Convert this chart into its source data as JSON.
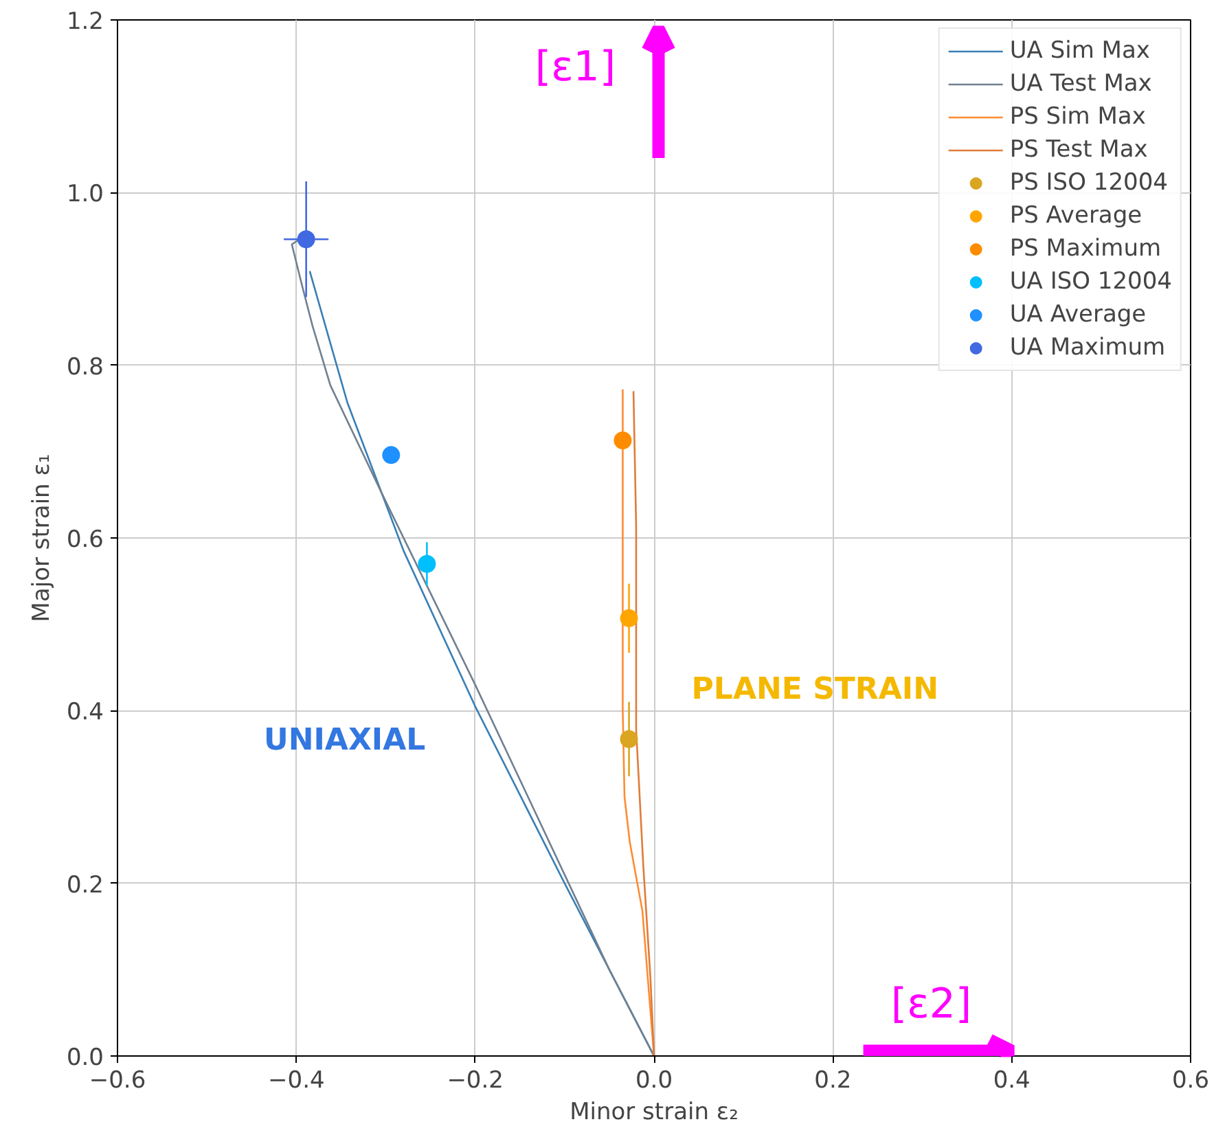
{
  "chart_data": {
    "type": "scatter",
    "xlabel": "Minor strain ε₂",
    "ylabel": "Major strain ε₁",
    "xlim": [
      -0.6,
      0.6
    ],
    "ylim": [
      0,
      1.2
    ],
    "xticks": [
      {
        "value": -0.6,
        "label": "−0.6"
      },
      {
        "value": -0.4,
        "label": "−0.4"
      },
      {
        "value": -0.2,
        "label": "−0.2"
      },
      {
        "value": 0,
        "label": "0.0"
      },
      {
        "value": 0.2,
        "label": "0.2"
      },
      {
        "value": 0.4,
        "label": "0.4"
      },
      {
        "value": 0.6,
        "label": "0.6"
      }
    ],
    "yticks": [
      {
        "value": 0,
        "label": "0.0"
      },
      {
        "value": 0.2,
        "label": "0.2"
      },
      {
        "value": 0.4,
        "label": "0.4"
      },
      {
        "value": 0.6,
        "label": "0.6"
      },
      {
        "value": 0.8,
        "label": "0.8"
      },
      {
        "value": 1.0,
        "label": "1.0"
      },
      {
        "value": 1.2,
        "label": "1.2"
      }
    ],
    "grid": true,
    "legend": "top right",
    "marker": "circle",
    "annotations": [
      "[ε1]",
      "[ε2]",
      "UNIAXIAL",
      "PLANE STRAIN"
    ],
    "series": [
      {
        "name": "UA Sim Max",
        "type": "line",
        "marker": "none",
        "color": "#3a7fb5",
        "x": [
          0,
          -0.1,
          -0.2,
          -0.28,
          -0.343,
          -0.385
        ],
        "values": [
          0,
          0.2,
          0.405,
          0.585,
          0.757,
          0.909
        ]
      },
      {
        "name": "UA Test Max",
        "type": "line",
        "marker": "none",
        "color": "#708090",
        "x": [
          0,
          -0.05,
          -0.1,
          -0.2,
          -0.305,
          -0.362,
          -0.382,
          -0.394,
          -0.405,
          -0.398
        ],
        "values": [
          0,
          0.1,
          0.21,
          0.43,
          0.653,
          0.777,
          0.846,
          0.894,
          0.94,
          0.945
        ]
      },
      {
        "name": "PS Sim Max",
        "type": "line",
        "marker": "none",
        "color": "#ff8c33",
        "x": [
          0,
          -0.013,
          -0.027,
          -0.033,
          -0.035,
          -0.035
        ],
        "values": [
          0,
          0.168,
          0.247,
          0.3,
          0.4,
          0.772
        ]
      },
      {
        "name": "PS Test Max",
        "type": "line",
        "marker": "none",
        "color": "#e07b39",
        "x": [
          0,
          -0.004,
          -0.012,
          -0.02,
          -0.02,
          -0.023
        ],
        "values": [
          0,
          0.09,
          0.22,
          0.378,
          0.614,
          0.77
        ]
      },
      {
        "name": "PS ISO 12004",
        "color": "#daa520",
        "x": [
          -0.028
        ],
        "values": [
          0.367
        ],
        "errors": [
          0.043
        ]
      },
      {
        "name": "PS Average",
        "color": "#ffa500",
        "x": [
          -0.028
        ],
        "values": [
          0.507
        ],
        "errors": [
          0.04
        ]
      },
      {
        "name": "PS Maximum",
        "color": "#ff8c00",
        "x": [
          -0.035
        ],
        "values": [
          0.713
        ]
      },
      {
        "name": "UA ISO 12004",
        "color": "#00bfff",
        "x": [
          -0.254
        ],
        "values": [
          0.57
        ],
        "errors": [
          0.025
        ]
      },
      {
        "name": "UA Average",
        "color": "#1e90ff",
        "x": [
          -0.294
        ],
        "values": [
          0.696
        ],
        "xerrors": [
          0.008
        ]
      },
      {
        "name": "UA Maximum",
        "color": "#4169e1",
        "x": [
          -0.389
        ],
        "values": [
          0.946
        ],
        "errors": [
          0.067
        ],
        "xerrors": [
          0.025
        ]
      }
    ]
  }
}
